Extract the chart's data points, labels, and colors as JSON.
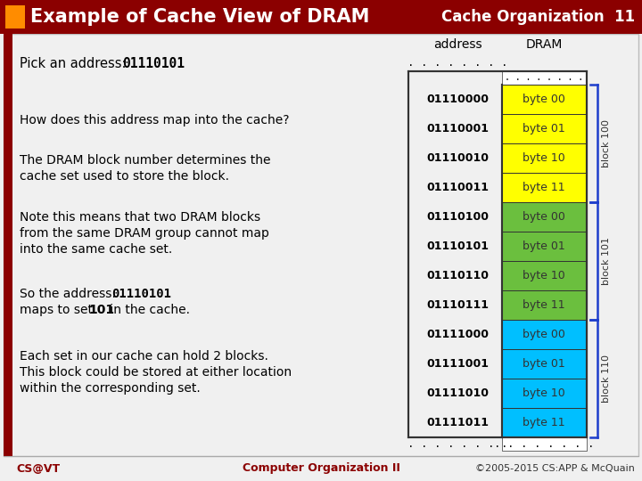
{
  "title": "Example of Cache View of DRAM",
  "subtitle": "Cache Organization  11",
  "bg_color": "#f0f0f0",
  "header_bg": "#8B0000",
  "header_text_color": "#ffffff",
  "orange_square_color": "#FF8C00",
  "left_bar_color": "#8B0000",
  "addresses": [
    "01110000",
    "01110001",
    "01110010",
    "01110011",
    "01110100",
    "01110101",
    "01110110",
    "01110111",
    "01111000",
    "01111001",
    "01111010",
    "01111011"
  ],
  "bytes": [
    "byte 00",
    "byte 01",
    "byte 10",
    "byte 11",
    "byte 00",
    "byte 01",
    "byte 10",
    "byte 11",
    "byte 00",
    "byte 01",
    "byte 10",
    "byte 11"
  ],
  "colors_block100": "#FFFF00",
  "colors_block101": "#6BBF3E",
  "colors_block110": "#00BFFF",
  "bracket_color": "#1E3ECC",
  "footer_left": "CS@VT",
  "footer_center": "Computer Organization II",
  "footer_right": "©2005-2015 CS:APP & McQuain",
  "footer_color": "#8B0000"
}
